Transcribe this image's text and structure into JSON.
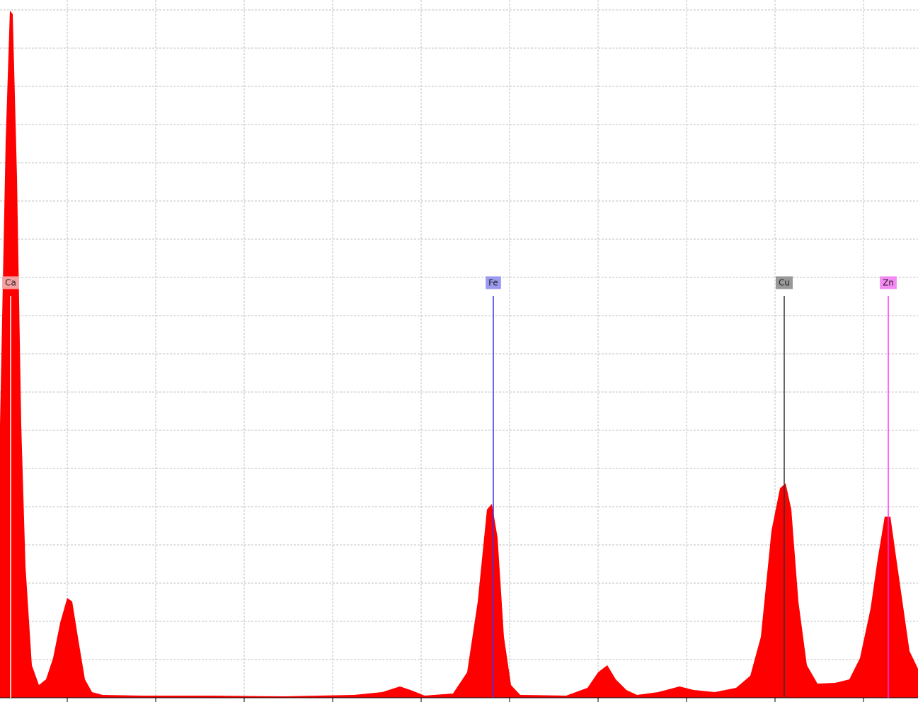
{
  "chart_data": {
    "type": "area",
    "color": "#ff0000",
    "grid": true,
    "x": [
      30,
      38,
      44,
      48,
      54,
      60,
      66,
      75,
      85,
      95,
      105,
      115,
      125,
      132,
      140,
      150,
      160,
      175,
      230,
      330,
      430,
      530,
      570,
      595,
      610,
      630,
      670,
      690,
      705,
      718,
      725,
      733,
      742,
      752,
      765,
      830,
      860,
      875,
      888,
      900,
      915,
      930,
      960,
      990,
      1010,
      1040,
      1070,
      1090,
      1105,
      1120,
      1132,
      1140,
      1148,
      1158,
      1170,
      1185,
      1210,
      1230,
      1245,
      1260,
      1270,
      1280,
      1288,
      1295,
      1305,
      1315,
      1327
    ],
    "values": [
      386,
      786,
      971,
      966,
      736,
      386,
      186,
      46,
      18,
      26,
      56,
      106,
      141,
      136,
      86,
      26,
      8,
      4,
      3,
      3,
      2,
      4,
      8,
      16,
      11,
      3,
      6,
      36,
      136,
      266,
      274,
      226,
      86,
      18,
      4,
      3,
      14,
      36,
      46,
      26,
      11,
      4,
      8,
      16,
      11,
      8,
      14,
      31,
      86,
      236,
      296,
      303,
      266,
      136,
      46,
      20,
      21,
      26,
      56,
      126,
      196,
      256,
      256,
      206,
      136,
      66,
      41
    ],
    "xlim": [
      30,
      1327
    ],
    "ylim": [
      0,
      986
    ],
    "xticks": [
      125,
      250,
      375,
      500,
      625,
      750,
      875,
      1000,
      1125,
      1250
    ],
    "yticks": [
      0,
      54,
      108,
      162,
      216,
      270,
      324,
      378,
      432,
      486,
      540,
      594,
      648,
      702,
      756,
      810,
      864,
      918,
      972
    ],
    "markers": [
      {
        "label": "Ca",
        "x": 45,
        "color": "#ffffff",
        "label_color": "#f4a0a0"
      },
      {
        "label": "Fe",
        "x": 727,
        "color": "#3333ff",
        "label_color": "#9a9af0"
      },
      {
        "label": "Cu",
        "x": 1138,
        "color": "#333333",
        "label_color": "#999999"
      },
      {
        "label": "Zn",
        "x": 1285,
        "color": "#ff33ff",
        "label_color": "#f58af5"
      }
    ]
  }
}
